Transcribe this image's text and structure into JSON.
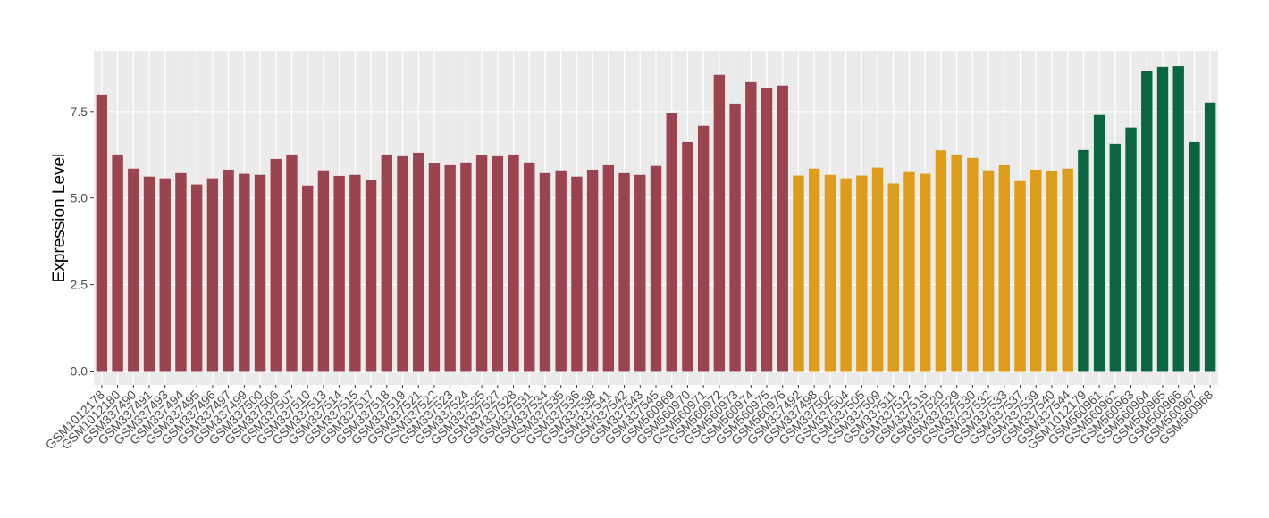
{
  "chart_data": {
    "type": "bar",
    "y_label": "Expression Level",
    "categories": [
      "GSM1012178",
      "GSM1012180",
      "GSM337490",
      "GSM337491",
      "GSM337493",
      "GSM337494",
      "GSM337495",
      "GSM337496",
      "GSM337497",
      "GSM337499",
      "GSM337500",
      "GSM337506",
      "GSM337507",
      "GSM337510",
      "GSM337513",
      "GSM337514",
      "GSM337515",
      "GSM337517",
      "GSM337518",
      "GSM337519",
      "GSM337521",
      "GSM337522",
      "GSM337523",
      "GSM337524",
      "GSM337525",
      "GSM337527",
      "GSM337528",
      "GSM337531",
      "GSM337534",
      "GSM337535",
      "GSM337536",
      "GSM337538",
      "GSM337541",
      "GSM337542",
      "GSM337543",
      "GSM337545",
      "GSM560969",
      "GSM560970",
      "GSM560971",
      "GSM560972",
      "GSM560973",
      "GSM560974",
      "GSM560975",
      "GSM560976",
      "GSM337492",
      "GSM337498",
      "GSM337502",
      "GSM337504",
      "GSM337505",
      "GSM337509",
      "GSM337511",
      "GSM337512",
      "GSM337516",
      "GSM337520",
      "GSM337529",
      "GSM337530",
      "GSM337532",
      "GSM337533",
      "GSM337537",
      "GSM337539",
      "GSM337540",
      "GSM337544",
      "GSM1012179",
      "GSM560961",
      "GSM560962",
      "GSM560963",
      "GSM560964",
      "GSM560965",
      "GSM560966",
      "GSM560967",
      "GSM560968"
    ],
    "values": [
      7.99,
      6.26,
      5.85,
      5.62,
      5.57,
      5.72,
      5.39,
      5.57,
      5.82,
      5.7,
      5.67,
      6.13,
      6.26,
      5.36,
      5.8,
      5.64,
      5.67,
      5.52,
      6.26,
      6.21,
      6.31,
      6.01,
      5.95,
      6.03,
      6.24,
      6.21,
      6.26,
      6.03,
      5.72,
      5.8,
      5.62,
      5.82,
      5.95,
      5.72,
      5.67,
      5.93,
      7.45,
      6.62,
      7.09,
      8.56,
      7.73,
      8.35,
      8.17,
      8.25,
      5.65,
      5.85,
      5.67,
      5.57,
      5.65,
      5.88,
      5.42,
      5.75,
      5.7,
      6.38,
      6.26,
      6.16,
      5.8,
      5.95,
      5.49,
      5.82,
      5.78,
      5.85,
      6.39,
      7.4,
      6.57,
      7.04,
      8.66,
      8.79,
      8.81,
      6.62,
      7.76
    ],
    "colors": [
      "#9b4450",
      "#9b4450",
      "#9b4450",
      "#9b4450",
      "#9b4450",
      "#9b4450",
      "#9b4450",
      "#9b4450",
      "#9b4450",
      "#9b4450",
      "#9b4450",
      "#9b4450",
      "#9b4450",
      "#9b4450",
      "#9b4450",
      "#9b4450",
      "#9b4450",
      "#9b4450",
      "#9b4450",
      "#9b4450",
      "#9b4450",
      "#9b4450",
      "#9b4450",
      "#9b4450",
      "#9b4450",
      "#9b4450",
      "#9b4450",
      "#9b4450",
      "#9b4450",
      "#9b4450",
      "#9b4450",
      "#9b4450",
      "#9b4450",
      "#9b4450",
      "#9b4450",
      "#9b4450",
      "#9b4450",
      "#9b4450",
      "#9b4450",
      "#9b4450",
      "#9b4450",
      "#9b4450",
      "#9b4450",
      "#9b4450",
      "#dd9c1a",
      "#dd9c1a",
      "#dd9c1a",
      "#dd9c1a",
      "#dd9c1a",
      "#dd9c1a",
      "#dd9c1a",
      "#dd9c1a",
      "#dd9c1a",
      "#dd9c1a",
      "#dd9c1a",
      "#dd9c1a",
      "#dd9c1a",
      "#dd9c1a",
      "#dd9c1a",
      "#dd9c1a",
      "#dd9c1a",
      "#dd9c1a",
      "#0a6640",
      "#0a6640",
      "#0a6640",
      "#0a6640",
      "#0a6640",
      "#0a6640",
      "#0a6640",
      "#0a6640",
      "#0a6640"
    ],
    "ylim": [
      -0.4,
      9.25
    ],
    "yticks": [
      {
        "value": 0,
        "label": "0.0"
      },
      {
        "value": 2.5,
        "label": "2.5"
      },
      {
        "value": 5,
        "label": "5.0"
      },
      {
        "value": 7.5,
        "label": "7.5"
      }
    ],
    "grid": true
  }
}
